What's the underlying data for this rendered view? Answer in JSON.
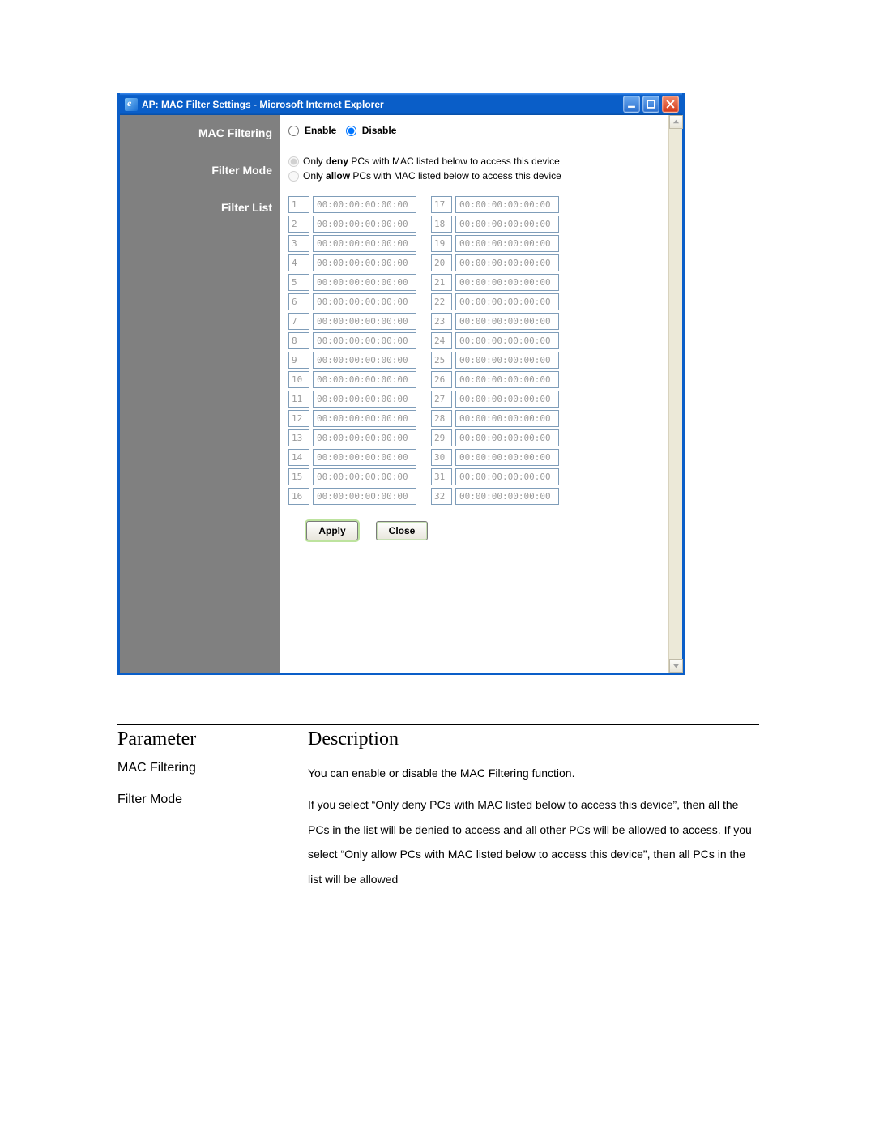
{
  "window": {
    "title": "AP: MAC Filter Settings - Microsoft Internet Explorer",
    "titlebar_color_top": "#3f8ef0",
    "titlebar_color_bottom": "#0a5ec8",
    "close_color": "#d43a1a"
  },
  "sidebar": {
    "bg_color": "#808080",
    "labels": {
      "mac_filtering": "MAC Filtering",
      "filter_mode": "Filter Mode",
      "filter_list": "Filter List"
    }
  },
  "enable_row": {
    "enable_label": "Enable",
    "disable_label": "Disable",
    "selected": "disable"
  },
  "mode_row": {
    "deny_prefix": "Only ",
    "deny_bold": "deny",
    "deny_suffix": " PCs with MAC listed below to access this device",
    "allow_prefix": "Only ",
    "allow_bold": "allow",
    "allow_suffix": " PCs with MAC listed below to access this device",
    "selected": "deny"
  },
  "filter_list": {
    "default_mac": "00:00:00:00:00:00",
    "count": 32,
    "input_border": "#7f9db9",
    "text_color": "#9a9a9a"
  },
  "buttons": {
    "apply": "Apply",
    "close": "Close"
  },
  "description_table": {
    "header_parameter": "Parameter",
    "header_description": "Description",
    "rows": [
      {
        "param": "MAC Filtering",
        "desc": "You can enable or disable the MAC Filtering function."
      },
      {
        "param": "Filter Mode",
        "desc": "If you select “Only deny PCs with MAC listed below to access this device”, then all the PCs in the list will be denied to access and all other PCs will be allowed to access. If you select “Only allow PCs with MAC listed below to access this device”, then all PCs in the list will be allowed"
      }
    ]
  }
}
